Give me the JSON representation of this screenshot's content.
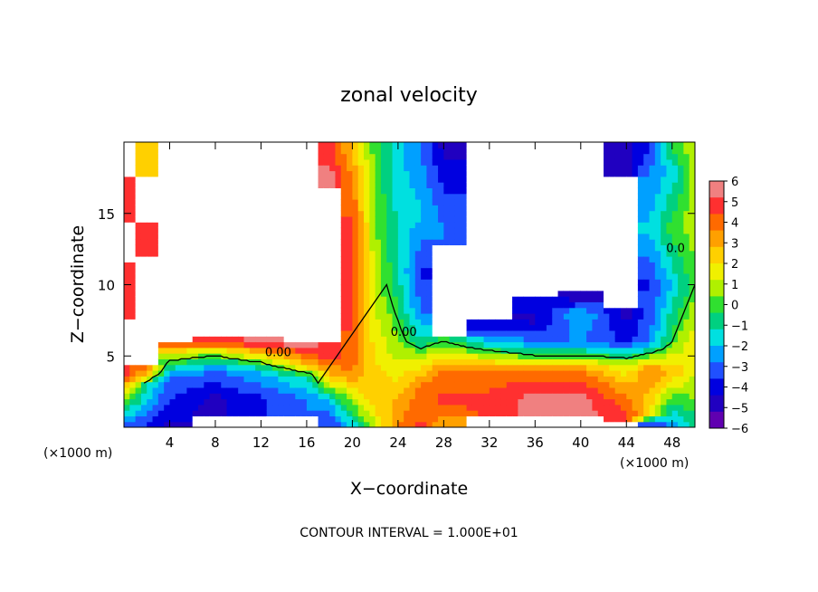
{
  "chart_data": {
    "type": "heatmap",
    "title": "zonal velocity",
    "xlabel": "X−coordinate",
    "ylabel": "Z−coordinate",
    "x_unit_left": "(×1000 m)",
    "x_unit_right": "(×1000 m)",
    "footer": "CONTOUR INTERVAL = 1.000E+01",
    "xlim": [
      0,
      50
    ],
    "ylim": [
      0,
      20
    ],
    "xticks": [
      4,
      8,
      12,
      16,
      20,
      24,
      28,
      32,
      36,
      40,
      44,
      48
    ],
    "xtick_labels": [
      "4",
      "8",
      "12",
      "16",
      "20",
      "24",
      "28",
      "32",
      "36",
      "40",
      "44",
      "48"
    ],
    "yticks": [
      5,
      10,
      15
    ],
    "ytick_labels": [
      "5",
      "10",
      "15"
    ],
    "colorbar": {
      "min": -6,
      "max": 6,
      "ticks": [
        6,
        5,
        4,
        3,
        2,
        1,
        0,
        -1,
        -2,
        -3,
        -4,
        -5,
        -6
      ],
      "tick_labels": [
        "6",
        "5",
        "4",
        "3",
        "2",
        "1",
        "0",
        "−1",
        "−2",
        "−3",
        "−4",
        "−5",
        "−6"
      ],
      "colors": [
        "#f08080",
        "#ff3030",
        "#ff6a00",
        "#ffa000",
        "#ffd000",
        "#f0f000",
        "#b0f000",
        "#30e030",
        "#00d080",
        "#00e0e0",
        "#00a0ff",
        "#2050ff",
        "#0000e0",
        "#2000c0",
        "#6000b0"
      ]
    },
    "contour_labels": [
      {
        "text": "0.00",
        "x": 13.5,
        "y": 5.0
      },
      {
        "text": "0.00",
        "x": 24.5,
        "y": 6.4
      },
      {
        "text": "0.0",
        "x": 48.3,
        "y": 12.3
      }
    ],
    "field_columns": [
      {
        "x": 0,
        "bands": [
          [
            0,
            -4
          ],
          [
            2.5,
            2
          ],
          [
            3.5,
            5
          ],
          [
            5,
            9
          ],
          [
            10,
            5
          ],
          [
            13,
            9
          ],
          [
            16,
            5
          ],
          [
            19.6,
            9
          ]
        ]
      },
      {
        "x": 2,
        "bands": [
          [
            0,
            -4
          ],
          [
            3,
            -1
          ],
          [
            4,
            4
          ],
          [
            5.2,
            9
          ],
          [
            11,
            9
          ],
          [
            13,
            5
          ],
          [
            16,
            9
          ],
          [
            19.6,
            3
          ]
        ]
      },
      {
        "x": 4,
        "bands": [
          [
            0,
            -5
          ],
          [
            3.5,
            -3
          ],
          [
            5,
            1
          ],
          [
            5.8,
            4
          ],
          [
            6.5,
            9
          ],
          [
            19.6,
            9
          ]
        ]
      },
      {
        "x": 8,
        "bands": [
          [
            0,
            9
          ],
          [
            2,
            -5
          ],
          [
            4,
            -3
          ],
          [
            5.3,
            1
          ],
          [
            6,
            5
          ],
          [
            6.8,
            9
          ],
          [
            19.6,
            9
          ]
        ]
      },
      {
        "x": 12,
        "bands": [
          [
            0,
            9
          ],
          [
            2,
            -4
          ],
          [
            4,
            -2
          ],
          [
            5,
            2
          ],
          [
            6,
            6
          ],
          [
            6.6,
            9
          ],
          [
            19.6,
            9
          ]
        ]
      },
      {
        "x": 16,
        "bands": [
          [
            0,
            9
          ],
          [
            2,
            -3
          ],
          [
            3.6,
            -1
          ],
          [
            4.4,
            3
          ],
          [
            5.8,
            6
          ],
          [
            6.6,
            9
          ],
          [
            19.6,
            9
          ]
        ]
      },
      {
        "x": 18,
        "bands": [
          [
            0,
            -4
          ],
          [
            2,
            -2
          ],
          [
            3.2,
            2
          ],
          [
            5,
            5
          ],
          [
            7,
            9
          ],
          [
            16,
            9
          ],
          [
            17.5,
            6
          ],
          [
            19.6,
            5
          ]
        ]
      },
      {
        "x": 20,
        "bands": [
          [
            0,
            -2
          ],
          [
            2,
            1
          ],
          [
            4,
            4
          ],
          [
            8,
            5
          ],
          [
            14,
            5
          ],
          [
            19.6,
            3
          ]
        ]
      },
      {
        "x": 22,
        "bands": [
          [
            0,
            1
          ],
          [
            2,
            3
          ],
          [
            5,
            2
          ],
          [
            10,
            1
          ],
          [
            19.6,
            0
          ]
        ]
      },
      {
        "x": 24,
        "bands": [
          [
            0,
            4
          ],
          [
            2,
            3
          ],
          [
            5,
            1
          ],
          [
            10,
            -1
          ],
          [
            19.6,
            -2
          ]
        ]
      },
      {
        "x": 26,
        "bands": [
          [
            0,
            5
          ],
          [
            3,
            4
          ],
          [
            5,
            1
          ],
          [
            6,
            -1
          ],
          [
            8,
            -3
          ],
          [
            11,
            -4
          ],
          [
            15,
            -2
          ],
          [
            19.6,
            -3
          ]
        ]
      },
      {
        "x": 28,
        "bands": [
          [
            0,
            3
          ],
          [
            2,
            5
          ],
          [
            4,
            4
          ],
          [
            5,
            2
          ],
          [
            6,
            0
          ],
          [
            7,
            9
          ],
          [
            12,
            9
          ],
          [
            14,
            -3
          ],
          [
            17,
            -4
          ],
          [
            19.6,
            -5
          ]
        ]
      },
      {
        "x": 32,
        "bands": [
          [
            0,
            9
          ],
          [
            2,
            5
          ],
          [
            4,
            4
          ],
          [
            5,
            1
          ],
          [
            6,
            -2
          ],
          [
            7,
            -4
          ],
          [
            8.5,
            9
          ],
          [
            19.6,
            9
          ]
        ]
      },
      {
        "x": 36,
        "bands": [
          [
            0,
            9
          ],
          [
            2,
            6
          ],
          [
            4,
            4
          ],
          [
            5,
            0
          ],
          [
            6,
            -3
          ],
          [
            7.5,
            -5
          ],
          [
            9,
            -4
          ],
          [
            9.5,
            9
          ],
          [
            19.6,
            9
          ]
        ]
      },
      {
        "x": 40,
        "bands": [
          [
            0,
            9
          ],
          [
            2,
            6
          ],
          [
            4,
            4
          ],
          [
            5,
            0
          ],
          [
            6,
            -3
          ],
          [
            8,
            -2
          ],
          [
            9,
            -5
          ],
          [
            10,
            9
          ],
          [
            19.6,
            9
          ]
        ]
      },
      {
        "x": 44,
        "bands": [
          [
            0,
            9
          ],
          [
            1,
            5
          ],
          [
            3,
            3
          ],
          [
            4.5,
            1
          ],
          [
            6,
            -4
          ],
          [
            8,
            -5
          ],
          [
            9,
            9
          ],
          [
            17,
            9
          ],
          [
            18,
            -5
          ],
          [
            19.6,
            -5
          ]
        ]
      },
      {
        "x": 46,
        "bands": [
          [
            0,
            -5
          ],
          [
            1,
            2
          ],
          [
            4,
            4
          ],
          [
            6,
            -3
          ],
          [
            10,
            -4
          ],
          [
            14,
            -2
          ],
          [
            18,
            -3
          ],
          [
            19.6,
            -4
          ]
        ]
      },
      {
        "x": 48,
        "bands": [
          [
            0,
            -3
          ],
          [
            2,
            0
          ],
          [
            4,
            3
          ],
          [
            6,
            0
          ],
          [
            10,
            -2
          ],
          [
            14,
            0
          ],
          [
            18,
            -2
          ],
          [
            19.6,
            0
          ]
        ]
      },
      {
        "x": 50,
        "bands": [
          [
            0,
            -1
          ],
          [
            3,
            1
          ],
          [
            6,
            2
          ],
          [
            10,
            0
          ],
          [
            14,
            1
          ],
          [
            19.6,
            1
          ]
        ]
      }
    ]
  }
}
